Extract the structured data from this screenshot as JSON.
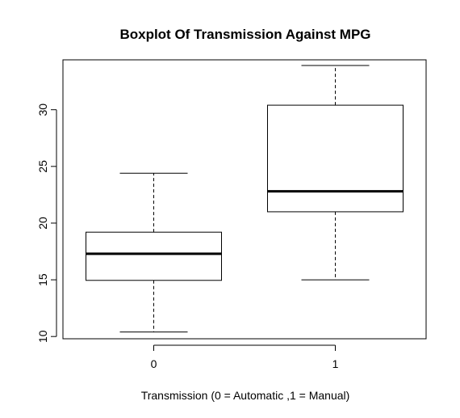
{
  "chart_data": {
    "type": "boxplot",
    "title": "Boxplot Of Transmission Against MPG",
    "xlabel": "Transmission (0 = Automatic ,1 = Manual)",
    "ylabel": "",
    "categories": [
      "0",
      "1"
    ],
    "ylim": [
      9.8,
      34.4
    ],
    "yticks": [
      10,
      15,
      20,
      25,
      30
    ],
    "grid": false,
    "boxes": [
      {
        "category": "0",
        "min": 10.4,
        "q1": 14.95,
        "median": 17.3,
        "q3": 19.2,
        "max": 24.4
      },
      {
        "category": "1",
        "min": 15.0,
        "q1": 21.0,
        "median": 22.8,
        "q3": 30.4,
        "max": 33.9
      }
    ],
    "colors": {
      "stroke": "#000000",
      "background": "#ffffff"
    }
  }
}
